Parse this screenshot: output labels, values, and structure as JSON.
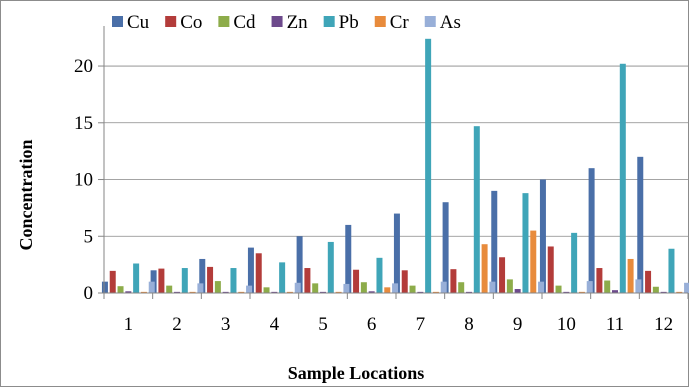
{
  "chart_data": {
    "type": "bar",
    "title": "",
    "xlabel": "Sample Locations",
    "ylabel": "Concentration",
    "ylim": [
      0,
      23
    ],
    "yticks": [
      0,
      5,
      10,
      15,
      20
    ],
    "grid": true,
    "legend_position": "top",
    "categories": [
      "1",
      "2",
      "3",
      "4",
      "5",
      "6",
      "7",
      "8",
      "9",
      "10",
      "11",
      "12"
    ],
    "series": [
      {
        "name": "Cu",
        "color": "#4a6fa8",
        "values": [
          1.0,
          2.0,
          3.0,
          4.0,
          5.0,
          6.0,
          7.0,
          8.0,
          9.0,
          10.0,
          11.0,
          12.0
        ]
      },
      {
        "name": "Co",
        "color": "#b33c3a",
        "values": [
          1.95,
          2.15,
          2.3,
          3.5,
          2.2,
          2.05,
          2.0,
          2.1,
          3.15,
          4.1,
          2.2,
          1.95
        ]
      },
      {
        "name": "Cd",
        "color": "#8dac4a",
        "values": [
          0.6,
          0.65,
          1.05,
          0.5,
          0.85,
          0.95,
          0.65,
          0.95,
          1.2,
          0.65,
          1.1,
          0.55
        ]
      },
      {
        "name": "Zn",
        "color": "#6d4a8c",
        "values": [
          0.15,
          0.1,
          0.1,
          0.1,
          0.1,
          0.15,
          0.1,
          0.1,
          0.35,
          0.1,
          0.25,
          0.1
        ]
      },
      {
        "name": "Pb",
        "color": "#3fa5b8",
        "values": [
          2.6,
          2.2,
          2.2,
          2.7,
          4.5,
          3.1,
          22.4,
          14.7,
          8.8,
          5.3,
          20.2,
          3.9
        ]
      },
      {
        "name": "Cr",
        "color": "#e88b3c",
        "values": [
          0.1,
          0.1,
          0.1,
          0.1,
          0.1,
          0.5,
          0.1,
          4.3,
          5.5,
          0.1,
          3.0,
          0.1
        ]
      },
      {
        "name": "As",
        "color": "#98afd8",
        "values": [
          1.0,
          0.85,
          0.65,
          0.9,
          0.8,
          0.85,
          1.0,
          1.0,
          1.0,
          1.05,
          1.2,
          0.9
        ]
      }
    ]
  }
}
